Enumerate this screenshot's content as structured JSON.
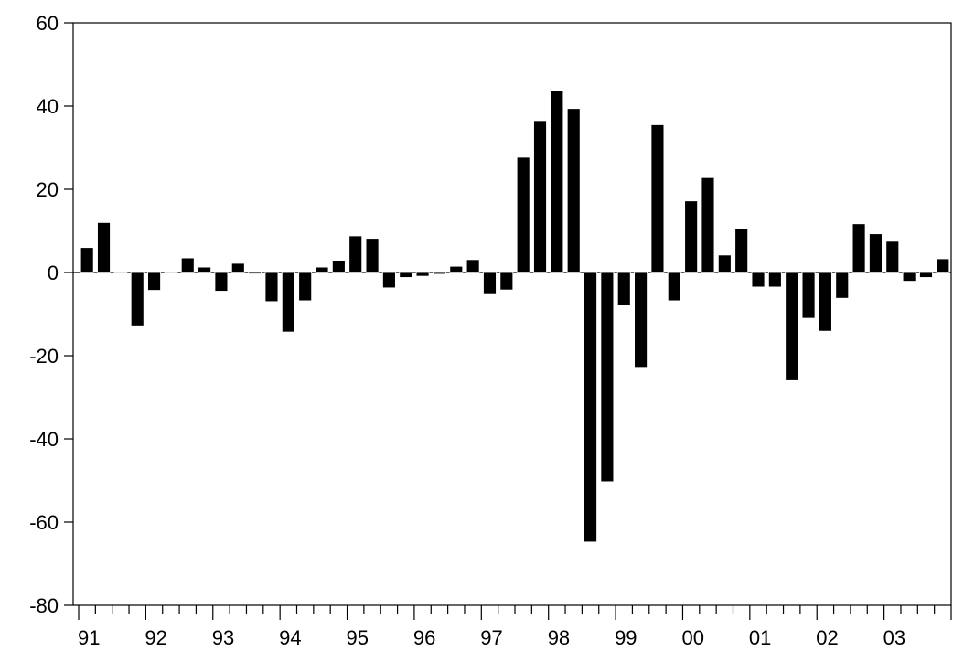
{
  "chart_data": {
    "type": "bar",
    "title": "",
    "xlabel": "",
    "ylabel": "",
    "ylim": [
      -80,
      60
    ],
    "y_ticks": [
      60,
      40,
      20,
      0,
      -20,
      -40,
      -60,
      -80
    ],
    "x_tick_labels": [
      "91",
      "92",
      "93",
      "94",
      "95",
      "96",
      "97",
      "98",
      "99",
      "00",
      "01",
      "02",
      "03"
    ],
    "frequency": "quarterly",
    "start_period": "1991Q1",
    "categories": [
      "1991Q1",
      "1991Q2",
      "1991Q3",
      "1991Q4",
      "1992Q1",
      "1992Q2",
      "1992Q3",
      "1992Q4",
      "1993Q1",
      "1993Q2",
      "1993Q3",
      "1993Q4",
      "1994Q1",
      "1994Q2",
      "1994Q3",
      "1994Q4",
      "1995Q1",
      "1995Q2",
      "1995Q3",
      "1995Q4",
      "1996Q1",
      "1996Q2",
      "1996Q3",
      "1996Q4",
      "1997Q1",
      "1997Q2",
      "1997Q3",
      "1997Q4",
      "1998Q1",
      "1998Q2",
      "1998Q3",
      "1998Q4",
      "1999Q1",
      "1999Q2",
      "1999Q3",
      "1999Q4",
      "2000Q1",
      "2000Q2",
      "2000Q3",
      "2000Q4",
      "2001Q1",
      "2001Q2",
      "2001Q3",
      "2001Q4",
      "2002Q1",
      "2002Q2",
      "2002Q3",
      "2002Q4",
      "2003Q1",
      "2003Q2",
      "2003Q3",
      "2003Q4"
    ],
    "values": [
      6,
      12,
      0.3,
      -12.8,
      -4.3,
      0.3,
      3.5,
      1.3,
      -4.5,
      2.2,
      -0.3,
      -7,
      -14.3,
      -6.8,
      1.3,
      2.8,
      8.8,
      8.2,
      -3.7,
      -1.2,
      -0.9,
      -0.4,
      1.5,
      3.1,
      -5.3,
      -4.2,
      27.7,
      36.5,
      43.8,
      39.4,
      -64.8,
      -50.3,
      -8,
      -22.8,
      35.5,
      -6.8,
      17.2,
      22.8,
      4.2,
      10.6,
      -3.5,
      -3.5,
      -26,
      -11,
      -14.1,
      -6.2,
      11.7,
      9.3,
      7.5,
      -2.1,
      -1.2,
      3.3
    ],
    "bar_color": "#000000",
    "grid": false,
    "legend": "none"
  }
}
